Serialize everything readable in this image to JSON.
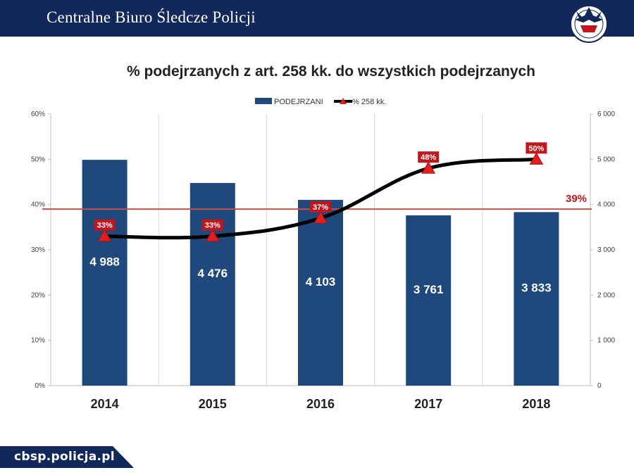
{
  "header": {
    "title": "Centralne Biuro Śledcze Policji"
  },
  "footer": {
    "url": "cbsp.policja.pl"
  },
  "colors": {
    "header_bg": "#13285a",
    "bar": "#1f497d",
    "line": "#000000",
    "marker": "#e02020",
    "label_box": "#c0161e",
    "reference": "#c0504d"
  },
  "chart_data": {
    "type": "bar",
    "title": "% podejrzanych z art. 258 kk. do wszystkich podejrzanych",
    "categories": [
      "2014",
      "2015",
      "2016",
      "2017",
      "2018"
    ],
    "series": [
      {
        "name": "PODEJRZANI",
        "type": "bar",
        "axis": "right",
        "values": [
          4988,
          4476,
          4103,
          3761,
          3833
        ],
        "labels": [
          "4 988",
          "4 476",
          "4 103",
          "3 761",
          "3 833"
        ]
      },
      {
        "name": "% 258 kk.",
        "type": "line",
        "axis": "left",
        "values": [
          33,
          33,
          37,
          48,
          50
        ],
        "labels": [
          "33%",
          "33%",
          "37%",
          "48%",
          "50%"
        ]
      }
    ],
    "reference_line": {
      "value": 39,
      "label": "39%"
    },
    "y_left": {
      "ylim": [
        0,
        60
      ],
      "ticks": [
        "0%",
        "10%",
        "20%",
        "30%",
        "40%",
        "50%",
        "60%"
      ]
    },
    "y_right": {
      "ylim": [
        0,
        6000
      ],
      "ticks": [
        "0",
        "1 000",
        "2 000",
        "3 000",
        "4 000",
        "5 000",
        "6 000"
      ]
    },
    "legend": "top-center",
    "grid": "vertical"
  }
}
